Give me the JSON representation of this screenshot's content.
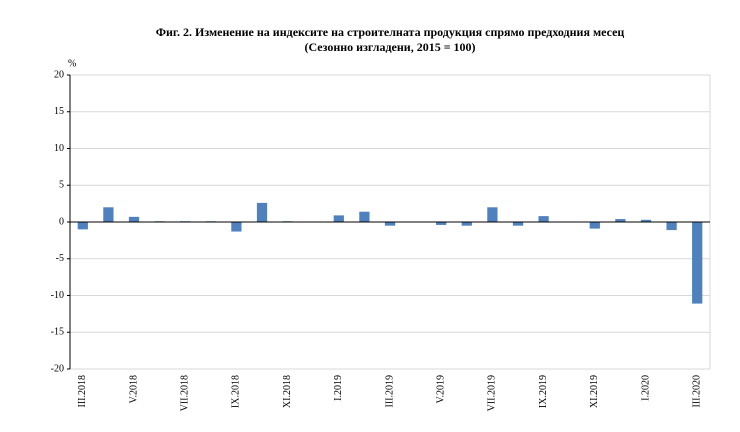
{
  "chart_data": {
    "type": "bar",
    "title": "Фиг. 2. Изменение на индексите на строителната продукция спрямо предходния месец",
    "subtitle": "(Сезонно изгладени, 2015 = 100)",
    "y_label": "%",
    "categories": [
      "III.2018",
      null,
      "V.2018",
      null,
      "VII.2018",
      null,
      "IX.2018",
      null,
      "XI.2018",
      null,
      "I.2019",
      null,
      "III.2019",
      null,
      "V.2019",
      null,
      "VII.2019",
      null,
      "IX.2019",
      null,
      "XI.2019",
      null,
      "I.2020",
      null,
      "III.2020"
    ],
    "values": [
      -1.0,
      2.0,
      0.7,
      0.1,
      0.1,
      0.1,
      -1.3,
      2.6,
      0.1,
      0.0,
      0.9,
      1.4,
      -0.5,
      0.0,
      -0.4,
      -0.5,
      2.0,
      -0.5,
      0.8,
      0.0,
      -0.9,
      0.4,
      0.3,
      -1.1,
      -11.1
    ],
    "color": "#4f81bd",
    "ylim": [
      -20,
      20
    ],
    "yticks": [
      -20,
      -15,
      -10,
      -5,
      0,
      5,
      10,
      15,
      20
    ],
    "grid": true
  }
}
